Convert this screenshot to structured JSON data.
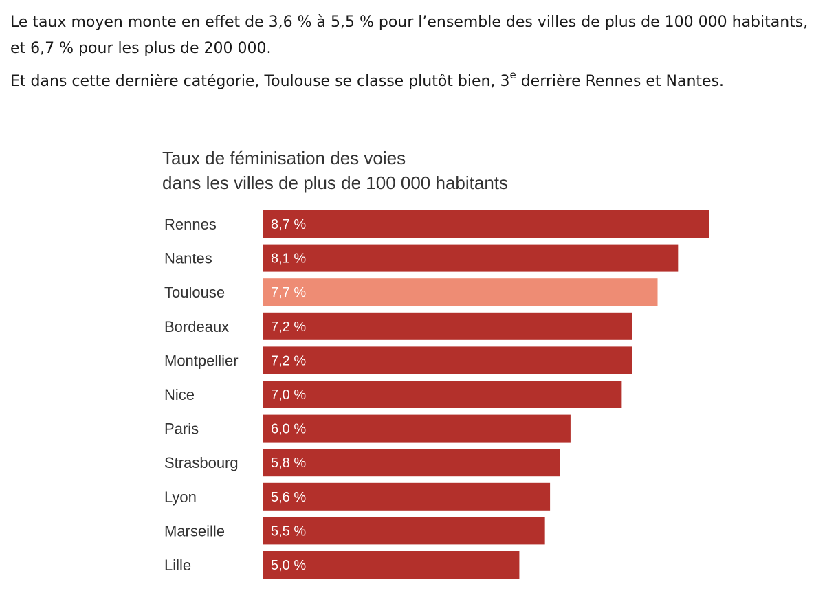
{
  "article": {
    "paragraph_1": "Le taux moyen monte en effet de 3,6 % à 5,5 % pour l’ensemble des villes de plus de 100 000 habitants, et 6,7 % pour les plus de 200 000.",
    "paragraph_2_before": "Et dans cette dernière catégorie, Toulouse se classe plutôt bien, 3",
    "paragraph_2_sup": "e",
    "paragraph_2_after": " derrière Rennes et Nantes."
  },
  "chart_data": {
    "type": "bar",
    "orientation": "horizontal",
    "title": "Taux de féminisation des voies",
    "subtitle": "dans les villes de plus de 100 000 habitants",
    "categories": [
      "Rennes",
      "Nantes",
      "Toulouse",
      "Bordeaux",
      "Montpellier",
      "Nice",
      "Paris",
      "Strasbourg",
      "Lyon",
      "Marseille",
      "Lille"
    ],
    "values": [
      8.7,
      8.1,
      7.7,
      7.2,
      7.2,
      7.0,
      6.0,
      5.8,
      5.6,
      5.5,
      5.0
    ],
    "value_labels": [
      "8,7 %",
      "8,1 %",
      "7,7 %",
      "7,2 %",
      "7,2 %",
      "7,0 %",
      "6,0 %",
      "5,8 %",
      "5,6 %",
      "5,5 %",
      "5,0 %"
    ],
    "highlight": "Toulouse",
    "colors": {
      "bar": "#b3302b",
      "highlight": "#ee8c74",
      "value_text": "#ffffff",
      "label_text": "#333333"
    },
    "xlim": [
      0,
      8.7
    ],
    "xlabel": "",
    "ylabel": "",
    "grid": false,
    "legend": false
  }
}
